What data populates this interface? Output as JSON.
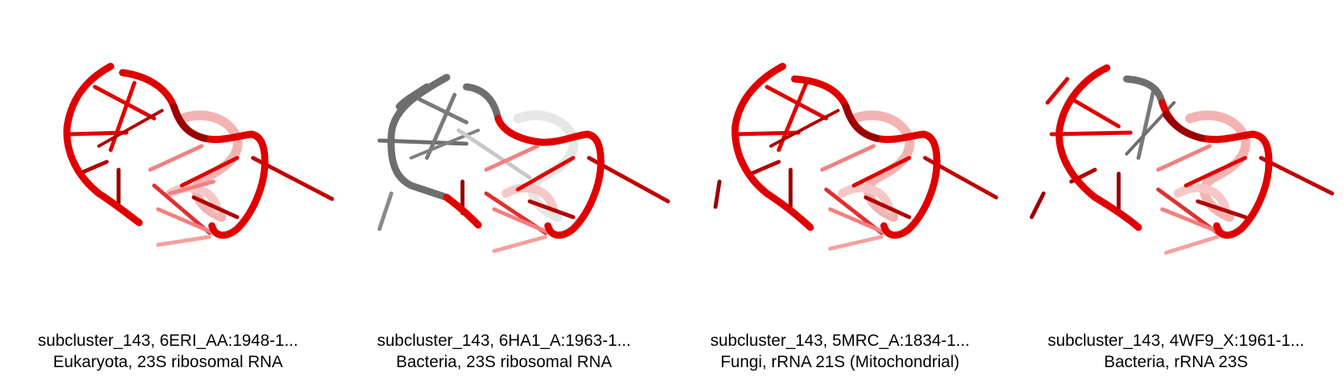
{
  "panels": [
    {
      "id": "6ERI",
      "caption_line1": "subcluster_143, 6ERI_AA:1948-1...",
      "caption_line2": "Eukaryota, 23S ribosomal RNA",
      "highlight": "none"
    },
    {
      "id": "6HA1",
      "caption_line1": "subcluster_143, 6HA1_A:1963-1...",
      "caption_line2": "Bacteria, 23S ribosomal RNA",
      "highlight": "left-loop-grey"
    },
    {
      "id": "5MRC",
      "caption_line1": "subcluster_143, 5MRC_A:1834-1...",
      "caption_line2": "Fungi, rRNA 21S (Mitochondrial)",
      "highlight": "none"
    },
    {
      "id": "4WF9",
      "caption_line1": "subcluster_143, 4WF9_X:1961-1...",
      "caption_line2": "Bacteria, rRNA 23S",
      "highlight": "top-strand-grey"
    }
  ],
  "colors": {
    "strand_red": "#e00000",
    "strand_dark_red": "#9a0000",
    "strand_faded": "#f2a0a0",
    "strand_grey": "#6e6e6e",
    "strand_light_grey": "#c8c8c8"
  }
}
